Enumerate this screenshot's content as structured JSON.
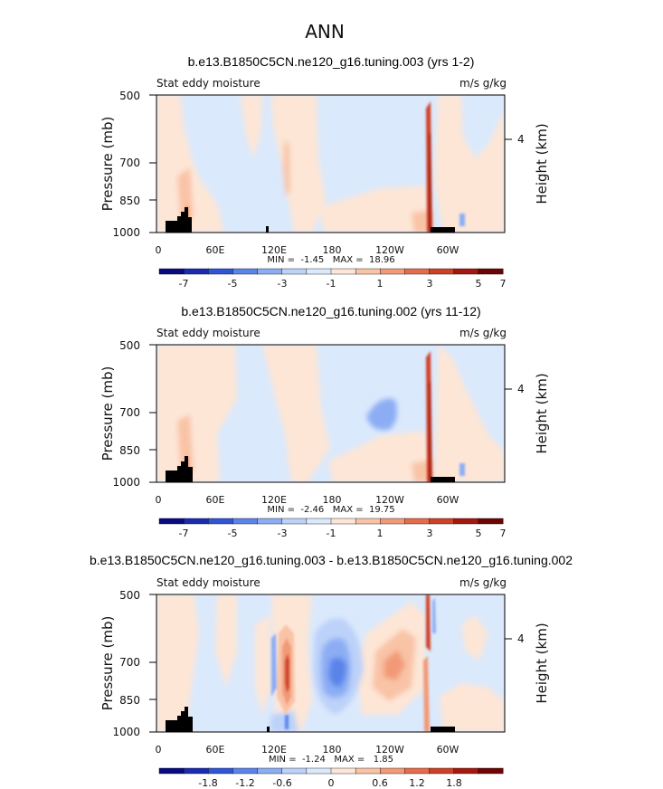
{
  "figure_title": "ANN",
  "chart_data": [
    {
      "type": "heatmap",
      "title": "b.e13.B1850C5CN.ne120_g16.tuning.003 (yrs 1-2)",
      "left_label": "Stat eddy moisture",
      "right_label": "m/s g/kg",
      "ylabel": "Pressure (mb)",
      "ylabel_right": "Height (km)",
      "y_ticks": [
        500,
        700,
        850,
        1000
      ],
      "y_right_ticks": [
        "4"
      ],
      "x_ticks": [
        "0",
        "60E",
        "120E",
        "180",
        "120W",
        "60W"
      ],
      "stats": "MIN =  -1.45   MAX =  18.96",
      "colorbar_labels": [
        "-7",
        "-5",
        "-3",
        "-1",
        "1",
        "3",
        "5",
        "7"
      ],
      "contour_min": -1.45,
      "contour_max": 18.96
    },
    {
      "type": "heatmap",
      "title": "b.e13.B1850C5CN.ne120_g16.tuning.002 (yrs 11-12)",
      "left_label": "Stat eddy moisture",
      "right_label": "m/s g/kg",
      "ylabel": "Pressure (mb)",
      "ylabel_right": "Height (km)",
      "y_ticks": [
        500,
        700,
        850,
        1000
      ],
      "y_right_ticks": [
        "4"
      ],
      "x_ticks": [
        "0",
        "60E",
        "120E",
        "180",
        "120W",
        "60W"
      ],
      "stats": "MIN =  -2.46   MAX =  19.75",
      "colorbar_labels": [
        "-7",
        "-5",
        "-3",
        "-1",
        "1",
        "3",
        "5",
        "7"
      ],
      "contour_min": -2.46,
      "contour_max": 19.75
    },
    {
      "type": "heatmap",
      "title": "b.e13.B1850C5CN.ne120_g16.tuning.003 - b.e13.B1850C5CN.ne120_g16.tuning.002",
      "left_label": "Stat eddy moisture",
      "right_label": "m/s g/kg",
      "ylabel": "Pressure (mb)",
      "ylabel_right": "Height (km)",
      "y_ticks": [
        500,
        700,
        850,
        1000
      ],
      "y_right_ticks": [
        "4"
      ],
      "x_ticks": [
        "0",
        "60E",
        "120E",
        "180",
        "120W",
        "60W"
      ],
      "stats": "MIN =  -1.24   MAX =   1.85",
      "colorbar_labels": [
        "-1.8",
        "-1.2",
        "-0.6",
        "0",
        "0.6",
        "1.2",
        "1.8"
      ],
      "contour_min": -1.24,
      "contour_max": 1.85
    }
  ],
  "colors": {
    "palette": [
      "#0a0a82",
      "#1b2bb0",
      "#2f55d6",
      "#5a84ea",
      "#8cadf4",
      "#bcd2f9",
      "#dbe9fc",
      "#fde6d6",
      "#f9c3a6",
      "#f29a77",
      "#e66d4c",
      "#cf4126",
      "#a3190f",
      "#6e0505"
    ],
    "background_blue": "#dbe9fc",
    "background_orange": "#fde6d6",
    "topography": "#000000"
  }
}
